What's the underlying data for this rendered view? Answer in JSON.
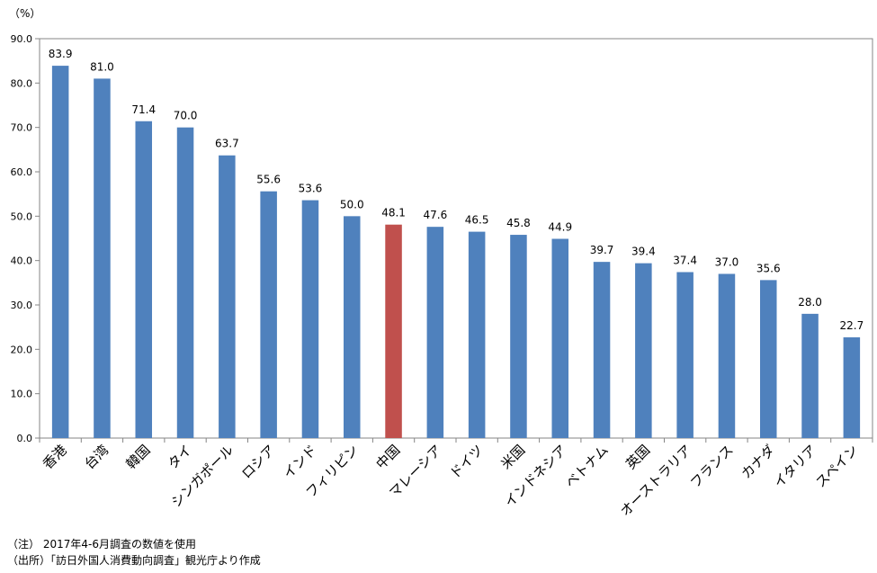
{
  "chart_data": {
    "type": "bar",
    "unit_label": "（%）",
    "categories": [
      "香港",
      "台湾",
      "韓国",
      "タイ",
      "シンガポール",
      "ロシア",
      "インド",
      "フィリピン",
      "中国",
      "マレーシア",
      "ドイツ",
      "米国",
      "インドネシア",
      "ベトナム",
      "英国",
      "オーストラリア",
      "フランス",
      "カナダ",
      "イタリア",
      "スペイン"
    ],
    "values": [
      83.9,
      81.0,
      71.4,
      70.0,
      63.7,
      55.6,
      53.6,
      50.0,
      48.1,
      47.6,
      46.5,
      45.8,
      44.9,
      39.7,
      39.4,
      37.4,
      37.0,
      35.6,
      28.0,
      22.7
    ],
    "value_labels": [
      "83.9",
      "81.0",
      "71.4",
      "70.0",
      "63.7",
      "55.6",
      "53.6",
      "50.0",
      "48.1",
      "47.6",
      "46.5",
      "45.8",
      "44.9",
      "39.7",
      "39.4",
      "37.4",
      "37.0",
      "35.6",
      "28.0",
      "22.7"
    ],
    "highlight_category": "中国",
    "ylim": [
      0,
      90
    ],
    "yticks": [
      0,
      10,
      20,
      30,
      40,
      50,
      60,
      70,
      80,
      90
    ],
    "ytick_labels": [
      "0.0",
      "10.0",
      "20.0",
      "30.0",
      "40.0",
      "50.0",
      "60.0",
      "70.0",
      "80.0",
      "90.0"
    ],
    "grid": false,
    "legend": "none",
    "colors": {
      "bar": "#4F81BD",
      "highlight": "#C0504D",
      "axis": "#868686"
    }
  },
  "notes": {
    "note1": "（注） 2017年4-6月調査の数値を使用",
    "note2": "（出所）「訪日外国人消費動向調査」観光庁より作成"
  }
}
